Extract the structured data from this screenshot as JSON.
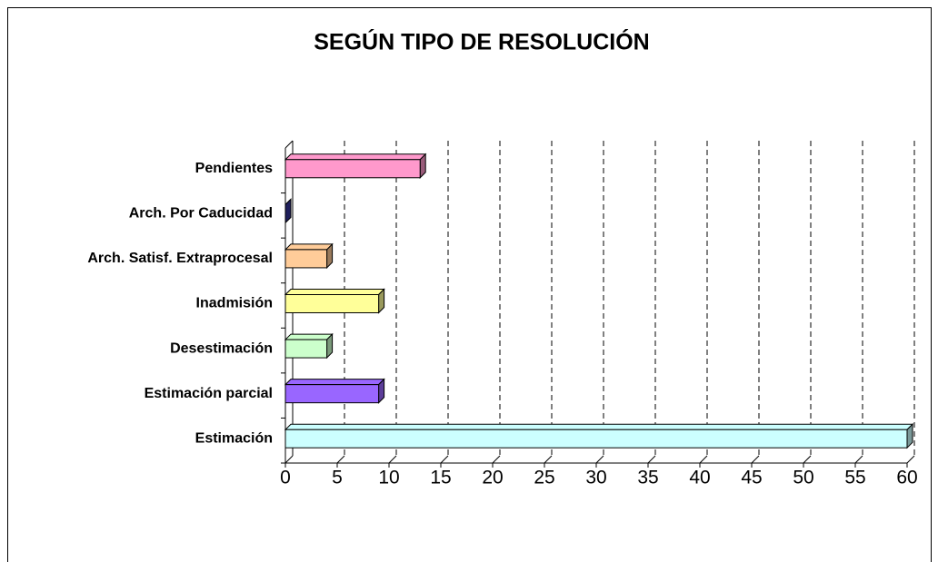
{
  "chart_data": {
    "type": "bar",
    "orientation": "horizontal",
    "title": "SEGÚN TIPO DE RESOLUCIÓN",
    "categories": [
      "Estimación",
      "Estimación parcial",
      "Desestimación",
      "Inadmisión",
      "Arch. Satisf. Extraprocesal",
      "Arch. Por Caducidad",
      "Pendientes"
    ],
    "values": [
      60,
      9,
      4,
      9,
      4,
      0,
      13
    ],
    "colors": [
      "#ccffff",
      "#9966ff",
      "#ccffcc",
      "#ffff99",
      "#ffcc99",
      "#333399",
      "#ff99cc"
    ],
    "xlim": [
      0,
      60
    ],
    "xticks": [
      0,
      5,
      10,
      15,
      20,
      25,
      30,
      35,
      40,
      45,
      50,
      55,
      60
    ],
    "grid": true
  }
}
